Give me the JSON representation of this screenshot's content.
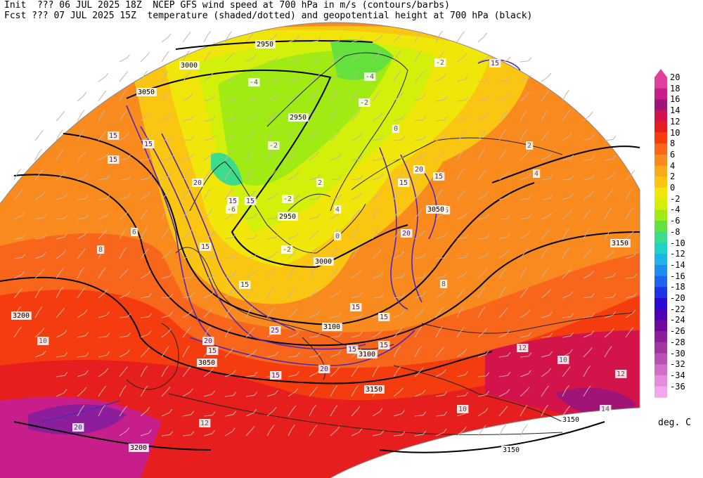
{
  "header": {
    "init_line": "Init  ??? 06 JUL 2025 18Z  NCEP GFS wind speed at 700 hPa in m/s (contours/barbs)",
    "fcst_line": "Fcst ??? 07 JUL 2025 15Z  temperature (shaded/dotted) and geopotential height at 700 hPa (black)"
  },
  "colorbar": {
    "units": "deg. C",
    "levels": [
      20,
      18,
      16,
      14,
      12,
      10,
      8,
      6,
      4,
      2,
      0,
      -2,
      -4,
      -6,
      -8,
      -10,
      -12,
      -14,
      -16,
      -18,
      -20,
      -22,
      -24,
      -26,
      -28,
      -30,
      -32,
      -34,
      -36
    ],
    "colors": [
      "#e0409a",
      "#c81e8c",
      "#a01478",
      "#d2144b",
      "#e61e1e",
      "#f53c0f",
      "#f8661c",
      "#f98a1e",
      "#fbab1a",
      "#fac612",
      "#f0e60a",
      "#d2f00a",
      "#a0eb14",
      "#64e13c",
      "#3cdc8c",
      "#1ed2c8",
      "#1eb4e6",
      "#1e8cf0",
      "#1e64f0",
      "#1e32e6",
      "#280ad2",
      "#5000b4",
      "#6e0a9b",
      "#8c1e9b",
      "#a0369e",
      "#b950b4",
      "#d26ec8",
      "#e68cdc",
      "#f0aaeb"
    ]
  },
  "map": {
    "temperature_labels": [
      "-4",
      "-2",
      "0",
      "2",
      "4",
      "6",
      "8",
      "10",
      "12",
      "-6",
      "-2",
      "-4",
      "-2",
      "-2",
      "-2",
      "0",
      "2",
      "4",
      "6",
      "8",
      "10",
      "12",
      "14",
      "10",
      "12"
    ],
    "height_labels": [
      "2950",
      "3000",
      "3050",
      "2950",
      "2950",
      "3000",
      "3050",
      "3100",
      "3150",
      "3150",
      "3200",
      "3200",
      "3150",
      "3150",
      "3100",
      "3050"
    ],
    "wind_labels": [
      "15",
      "15",
      "15",
      "15",
      "20",
      "15",
      "15",
      "15",
      "15",
      "20",
      "15",
      "15",
      "20",
      "25",
      "20",
      "15",
      "15",
      "20",
      "15",
      "15",
      "15",
      "20",
      "15"
    ],
    "accent_colors": {
      "height_contour": "#000000",
      "wind_contour": "#5028b4",
      "coast": "#222222"
    }
  }
}
